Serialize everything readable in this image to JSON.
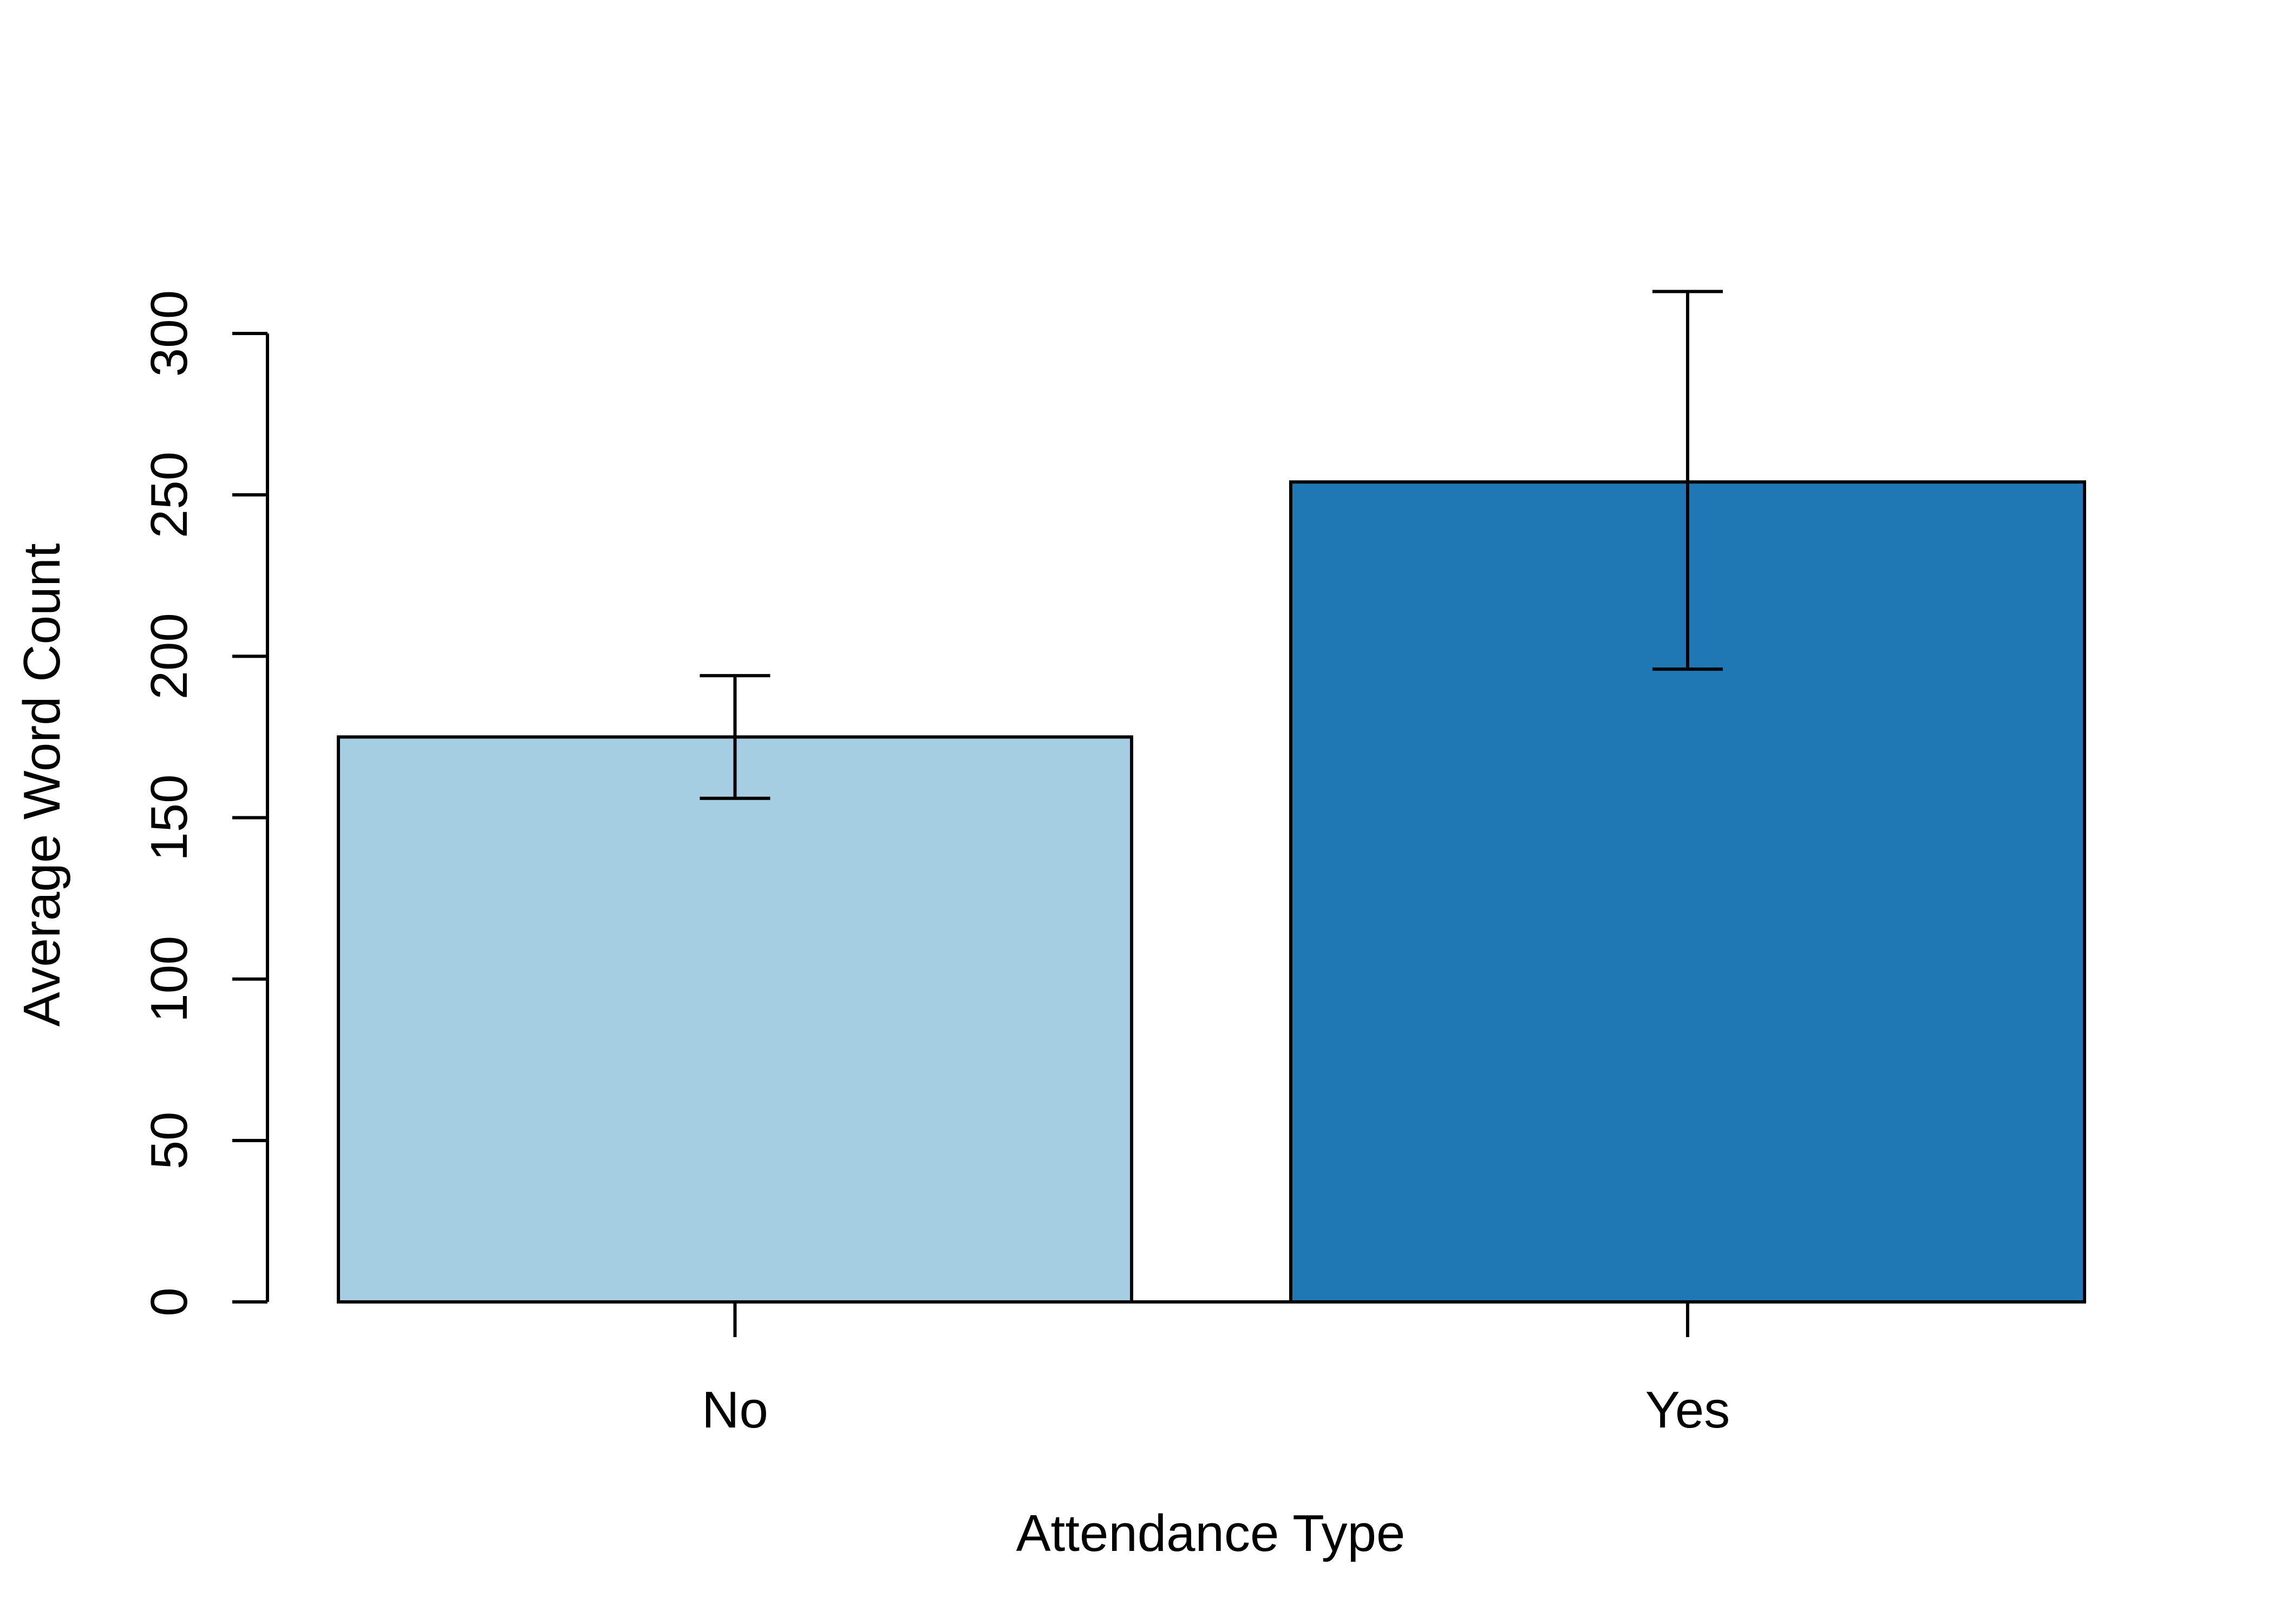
{
  "chart_data": {
    "type": "bar",
    "title": "",
    "xlabel": "Attendance Type",
    "ylabel": "Average Word Count",
    "ylim": [
      0,
      300
    ],
    "yticks": [
      0,
      50,
      100,
      150,
      200,
      250,
      300
    ],
    "categories": [
      "No",
      "Yes"
    ],
    "values": [
      175,
      254
    ],
    "error_bars": [
      {
        "low": 156,
        "high": 194
      },
      {
        "low": 196,
        "high": 313
      }
    ],
    "colors": [
      "#a6cee3",
      "#1f78b4"
    ],
    "grid": false,
    "legend": "none"
  }
}
